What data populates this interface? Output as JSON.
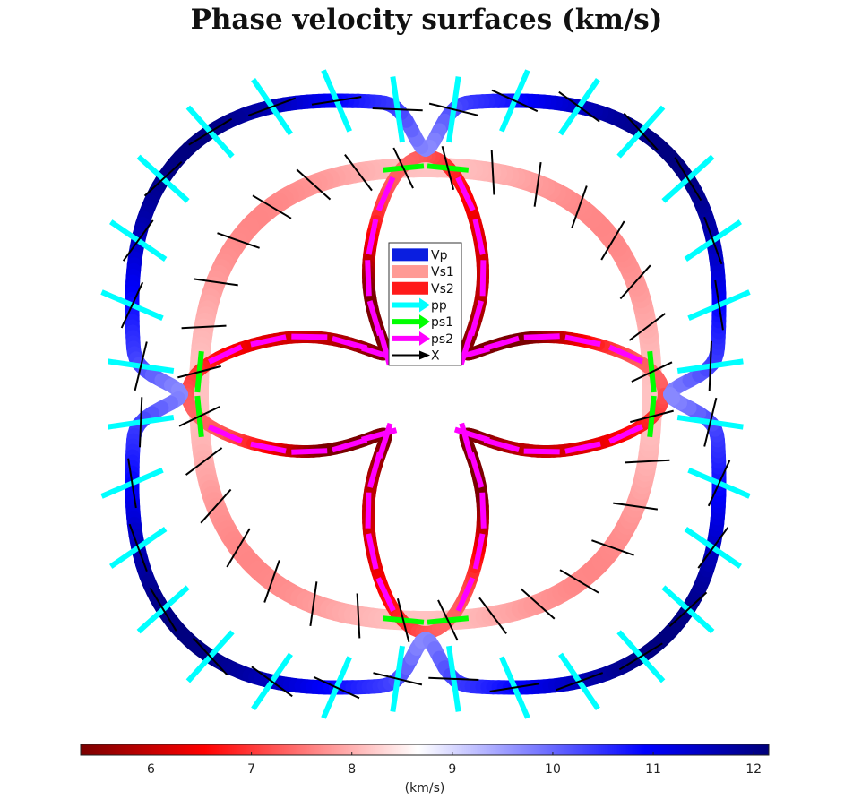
{
  "chart_data": {
    "type": "polar-surface",
    "title": "Phase velocity surfaces (km/s)",
    "legend": {
      "placement": "center",
      "entries": [
        {
          "label": "Vp",
          "color": "#0a1ee0"
        },
        {
          "label": "Vs1",
          "color": "#ff9a94"
        },
        {
          "label": "Vs2",
          "color": "#ff1a1a"
        },
        {
          "label": "pp",
          "color": "#00ffff"
        },
        {
          "label": "ps1",
          "color": "#00ff00"
        },
        {
          "label": "ps2",
          "color": "#ff00ff"
        },
        {
          "label": "X",
          "color": "#000000"
        }
      ]
    },
    "colorbar": {
      "label": "(km/s)",
      "range": [
        5.3,
        12.15
      ],
      "ticks": [
        6,
        7,
        8,
        9,
        10,
        11,
        12
      ],
      "colormap": [
        [
          0.0,
          "#7a0000"
        ],
        [
          0.18,
          "#ff0000"
        ],
        [
          0.49,
          "#ffffff"
        ],
        [
          0.82,
          "#0000ff"
        ],
        [
          1.0,
          "#00007a"
        ]
      ]
    },
    "series": [
      {
        "name": "Vp",
        "velocity_range": [
          10.3,
          12.1
        ]
      },
      {
        "name": "Vs1",
        "velocity_range": [
          7.6,
          8.2
        ]
      },
      {
        "name": "Vs2",
        "velocity_range": [
          5.5,
          7.4
        ]
      }
    ]
  },
  "title": "Phase velocity surfaces (km/s)",
  "colorbar_label": "(km/s)"
}
